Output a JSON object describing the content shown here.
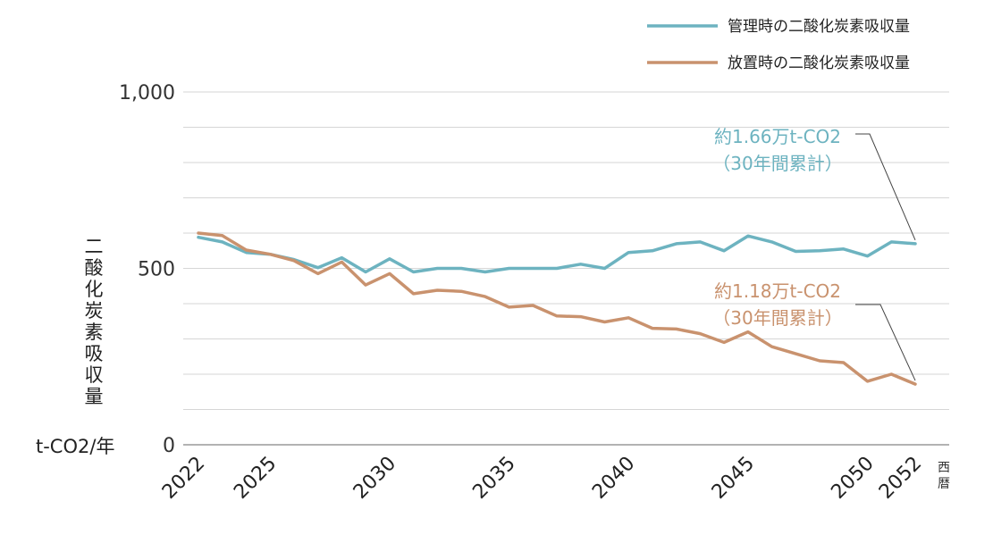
{
  "chart_data": {
    "type": "line",
    "x": [
      2022,
      2023,
      2024,
      2025,
      2026,
      2027,
      2028,
      2029,
      2030,
      2031,
      2032,
      2033,
      2034,
      2035,
      2036,
      2037,
      2038,
      2039,
      2040,
      2041,
      2042,
      2043,
      2044,
      2045,
      2046,
      2047,
      2048,
      2049,
      2050,
      2051,
      2052
    ],
    "series": [
      {
        "name": "管理時の二酸化炭素吸収量",
        "values": [
          588,
          575,
          545,
          540,
          525,
          502,
          530,
          490,
          527,
          490,
          500,
          500,
          490,
          500,
          500,
          500,
          512,
          500,
          545,
          550,
          570,
          575,
          550,
          592,
          575,
          548,
          550,
          555,
          535,
          575,
          570
        ]
      },
      {
        "name": "放置時の二酸化炭素吸収量",
        "values": [
          600,
          593,
          552,
          540,
          522,
          485,
          518,
          453,
          485,
          428,
          438,
          435,
          420,
          390,
          395,
          365,
          363,
          348,
          360,
          330,
          328,
          315,
          290,
          320,
          278,
          258,
          238,
          233,
          180,
          200,
          172
        ]
      }
    ],
    "ylim": [
      0,
      1000
    ],
    "xlim": [
      2022,
      2052
    ],
    "yticks": [
      "0",
      "500",
      "1,000"
    ],
    "ytick_values": [
      0,
      500,
      1000
    ],
    "xticks": [
      "2022",
      "2025",
      "2030",
      "2035",
      "2040",
      "2045",
      "2050",
      "2052"
    ],
    "xtick_values": [
      2022,
      2025,
      2030,
      2035,
      2040,
      2045,
      2050,
      2052
    ],
    "ylabel_chars": [
      "二",
      "酸",
      "化",
      "炭",
      "素",
      "吸",
      "収",
      "量"
    ],
    "yunit": "t-CO2/年",
    "xunit_chars": [
      "西",
      "暦"
    ],
    "legend_position": "top-right",
    "grid": true,
    "annotations": [
      {
        "series": 0,
        "line1": "約1.66万t-CO2",
        "line2": "（30年間累計）"
      },
      {
        "series": 1,
        "line1": "約1.18万t-CO2",
        "line2": "（30年間累計）"
      }
    ],
    "colors": [
      "#6db3c0",
      "#c9926e"
    ]
  }
}
